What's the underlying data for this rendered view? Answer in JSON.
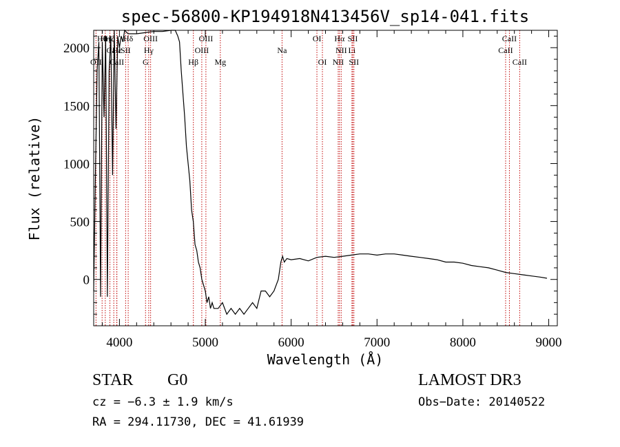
{
  "chart_data": {
    "type": "line",
    "title": "spec-56800-KP194918N413456V_sp14-041.fits",
    "xlabel": "Wavelength (Å)",
    "ylabel": "Flux (relative)",
    "xlim": [
      3700,
      9100
    ],
    "ylim": [
      -400,
      2150
    ],
    "x_ticks": [
      4000,
      5000,
      6000,
      7000,
      8000,
      9000
    ],
    "y_ticks": [
      0,
      500,
      1000,
      1500,
      2000
    ],
    "series": [
      {
        "name": "flux",
        "x": [
          3700,
          3720,
          3740,
          3760,
          3780,
          3800,
          3820,
          3840,
          3860,
          3880,
          3900,
          3920,
          3940,
          3960,
          3980,
          4000,
          4020,
          4040,
          4060,
          4100,
          4150,
          4200,
          4300,
          4400,
          4500,
          4600,
          4650,
          4680,
          4700,
          4720,
          4740,
          4760,
          4780,
          4800,
          4820,
          4840,
          4860,
          4880,
          4900,
          4920,
          4940,
          4960,
          4980,
          5000,
          5020,
          5040,
          5060,
          5080,
          5100,
          5150,
          5200,
          5250,
          5300,
          5350,
          5400,
          5450,
          5500,
          5550,
          5600,
          5650,
          5700,
          5750,
          5800,
          5850,
          5880,
          5900,
          5920,
          5950,
          6000,
          6100,
          6200,
          6300,
          6400,
          6500,
          6600,
          6700,
          6800,
          6900,
          7000,
          7100,
          7200,
          7300,
          7400,
          7500,
          7600,
          7700,
          7800,
          7900,
          8000,
          8100,
          8200,
          8300,
          8400,
          8500,
          8600,
          8700,
          8800,
          8900,
          8980
        ],
        "y": [
          -100,
          900,
          1800,
          2050,
          -150,
          2050,
          1400,
          2100,
          -150,
          1800,
          2100,
          900,
          2150,
          1300,
          2100,
          2000,
          2100,
          2050,
          2150,
          2120,
          2120,
          2120,
          2130,
          2140,
          2140,
          2150,
          2150,
          2100,
          2050,
          1800,
          1600,
          1400,
          1150,
          1000,
          850,
          600,
          500,
          300,
          250,
          150,
          100,
          0,
          -50,
          -100,
          -200,
          -150,
          -250,
          -200,
          -250,
          -250,
          -200,
          -300,
          -250,
          -300,
          -250,
          -300,
          -250,
          -200,
          -250,
          -100,
          -100,
          -150,
          -100,
          0,
          150,
          200,
          150,
          180,
          170,
          180,
          160,
          190,
          200,
          190,
          200,
          210,
          220,
          220,
          210,
          220,
          220,
          210,
          200,
          190,
          180,
          170,
          150,
          150,
          140,
          120,
          110,
          100,
          80,
          60,
          50,
          40,
          30,
          20,
          10
        ]
      }
    ],
    "emission_lines": [
      {
        "label": "OII",
        "wave": 3727,
        "row": 3
      },
      {
        "label": "Hθ",
        "wave": 3798,
        "row": 1
      },
      {
        "label": "Hη",
        "wave": 3835,
        "row": 1
      },
      {
        "label": "Hζ",
        "wave": 3889,
        "row": 1
      },
      {
        "label": "Hε",
        "wave": 3970,
        "row": 2
      },
      {
        "label": "CaII",
        "wave": 3934,
        "row": 2
      },
      {
        "label": "CaII",
        "wave": 3969,
        "row": 3
      },
      {
        "label": "SII",
        "wave": 4072,
        "row": 2
      },
      {
        "label": "Hδ",
        "wave": 4102,
        "row": 1
      },
      {
        "label": "G",
        "wave": 4304,
        "row": 3
      },
      {
        "label": "Hγ",
        "wave": 4341,
        "row": 2
      },
      {
        "label": "OIII",
        "wave": 4363,
        "row": 1
      },
      {
        "label": "Hβ",
        "wave": 4861,
        "row": 3
      },
      {
        "label": "OIII",
        "wave": 4959,
        "row": 2
      },
      {
        "label": "OIII",
        "wave": 5007,
        "row": 1
      },
      {
        "label": "Mg",
        "wave": 5175,
        "row": 3
      },
      {
        "label": "Na",
        "wave": 5894,
        "row": 2
      },
      {
        "label": "OI",
        "wave": 6300,
        "row": 1
      },
      {
        "label": "OI",
        "wave": 6364,
        "row": 3
      },
      {
        "label": "NII",
        "wave": 6548,
        "row": 3
      },
      {
        "label": "Hα",
        "wave": 6563,
        "row": 1
      },
      {
        "label": "NII",
        "wave": 6583,
        "row": 2
      },
      {
        "label": "Li",
        "wave": 6708,
        "row": 2
      },
      {
        "label": "SII",
        "wave": 6717,
        "row": 1
      },
      {
        "label": "SII",
        "wave": 6731,
        "row": 3
      },
      {
        "label": "CaII",
        "wave": 8498,
        "row": 2
      },
      {
        "label": "CaII",
        "wave": 8542,
        "row": 1
      },
      {
        "label": "CaII",
        "wave": 8662,
        "row": 3
      }
    ]
  },
  "info": {
    "class": "STAR",
    "subclass": "G0",
    "survey": "LAMOST DR3",
    "cz": "cz = −6.3 ± 1.9 km/s",
    "obs_date": "Obs−Date: 20140522",
    "coords": "RA = 294.11730, DEC =  41.61939"
  }
}
